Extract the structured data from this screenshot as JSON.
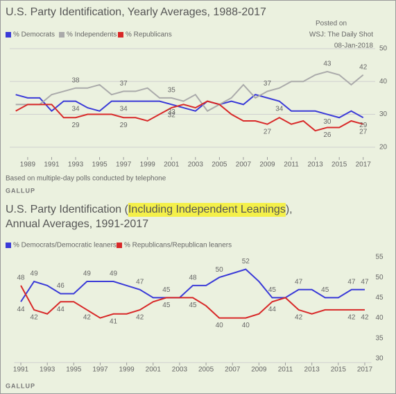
{
  "chart_data": [
    {
      "type": "line",
      "title": "U.S. Party Identification, Yearly Averages, 1988-2017",
      "posted": [
        "Posted on",
        "WSJ: The Daily Shot",
        "08-Jan-2018"
      ],
      "x": [
        1988,
        1989,
        1990,
        1991,
        1992,
        1993,
        1994,
        1995,
        1996,
        1997,
        1998,
        1999,
        2000,
        2001,
        2002,
        2003,
        2004,
        2005,
        2006,
        2007,
        2008,
        2009,
        2010,
        2011,
        2012,
        2013,
        2014,
        2015,
        2016,
        2017
      ],
      "series": [
        {
          "name": "% Democrats",
          "color": "#3a3ad8",
          "values": [
            36,
            35,
            35,
            31,
            34,
            34,
            32,
            31,
            34,
            34,
            34,
            34,
            34,
            33,
            32,
            31,
            34,
            33,
            34,
            33,
            36,
            35,
            34,
            31,
            31,
            31,
            30,
            29,
            31,
            29
          ],
          "value_labels": [
            null,
            null,
            null,
            null,
            null,
            "34",
            null,
            null,
            null,
            "34",
            null,
            null,
            null,
            "33",
            null,
            null,
            null,
            null,
            null,
            null,
            null,
            null,
            "34",
            null,
            null,
            null,
            "30",
            null,
            null,
            "29"
          ]
        },
        {
          "name": "% Independents",
          "color": "#aaaaaa",
          "values": [
            33,
            33,
            33,
            36,
            37,
            38,
            38,
            39,
            36,
            37,
            37,
            38,
            35,
            35,
            34,
            36,
            31,
            33,
            35,
            39,
            35,
            37,
            38,
            40,
            40,
            42,
            43,
            42,
            39,
            42
          ],
          "value_labels": [
            null,
            null,
            null,
            null,
            null,
            "38",
            null,
            null,
            null,
            "37",
            null,
            null,
            null,
            "35",
            null,
            null,
            null,
            null,
            null,
            null,
            null,
            "37",
            null,
            null,
            null,
            null,
            "43",
            null,
            null,
            "42"
          ]
        },
        {
          "name": "% Republicans",
          "color": "#d82828",
          "values": [
            31,
            33,
            33,
            33,
            29,
            29,
            30,
            30,
            30,
            29,
            29,
            28,
            30,
            32,
            33,
            32,
            34,
            33,
            30,
            28,
            28,
            27,
            29,
            27,
            28,
            25,
            26,
            26,
            28,
            27
          ],
          "value_labels": [
            null,
            null,
            null,
            null,
            null,
            "29",
            null,
            null,
            null,
            "29",
            null,
            null,
            null,
            "32",
            null,
            null,
            null,
            null,
            null,
            null,
            null,
            "27",
            null,
            null,
            null,
            null,
            "26",
            null,
            null,
            "27"
          ]
        }
      ],
      "xlim": [
        1987.5,
        2018
      ],
      "xticks": [
        1989,
        1991,
        1993,
        1995,
        1997,
        1999,
        2001,
        2003,
        2005,
        2007,
        2009,
        2011,
        2013,
        2015,
        2017
      ],
      "ylim": [
        17,
        52
      ],
      "yticks": [
        20,
        30,
        40,
        50
      ],
      "grid": true,
      "note": "Based on multiple-day polls conducted by telephone",
      "footer": "GALLUP"
    },
    {
      "type": "line",
      "title": {
        "before": "U.S. Party Identification (",
        "highlight": "Including Independent Leanings",
        "after": "),",
        "line2": "Annual Averages, 1991-2017"
      },
      "x": [
        1991,
        1992,
        1993,
        1994,
        1995,
        1996,
        1997,
        1998,
        1999,
        2000,
        2001,
        2002,
        2003,
        2004,
        2005,
        2006,
        2007,
        2008,
        2009,
        2010,
        2011,
        2012,
        2013,
        2014,
        2015,
        2016,
        2017
      ],
      "series": [
        {
          "name": "% Democrats/Democratic leaners",
          "color": "#3a3ad8",
          "values": [
            44,
            49,
            48,
            46,
            46,
            49,
            49,
            49,
            48,
            47,
            45,
            45,
            45,
            48,
            48,
            50,
            51,
            52,
            49,
            45,
            45,
            47,
            47,
            45,
            45,
            47,
            47
          ],
          "value_labels": [
            "44",
            "49",
            null,
            "46",
            null,
            "49",
            null,
            "49",
            null,
            "47",
            null,
            "45",
            null,
            "48",
            null,
            "50",
            null,
            "52",
            null,
            "45",
            null,
            "47",
            null,
            "45",
            null,
            "47",
            "47"
          ]
        },
        {
          "name": "% Republicans/Republican leaners",
          "color": "#d82828",
          "values": [
            48,
            42,
            41,
            44,
            44,
            42,
            40,
            41,
            41,
            42,
            44,
            45,
            45,
            45,
            43,
            40,
            40,
            40,
            41,
            44,
            45,
            42,
            41,
            42,
            42,
            42,
            42
          ],
          "value_labels": [
            "48",
            "42",
            null,
            "44",
            null,
            "42",
            null,
            "41",
            null,
            "42",
            null,
            "45",
            null,
            "45",
            null,
            "40",
            null,
            "40",
            null,
            "44",
            null,
            "42",
            null,
            null,
            null,
            "42",
            "42"
          ]
        }
      ],
      "xlim": [
        1990.5,
        2017.5
      ],
      "xticks": [
        1991,
        1993,
        1995,
        1997,
        1999,
        2001,
        2003,
        2005,
        2007,
        2009,
        2011,
        2013,
        2015,
        2017
      ],
      "ylim": [
        29,
        56
      ],
      "yticks": [
        30,
        35,
        40,
        45,
        50,
        55
      ],
      "grid": false,
      "footer": "GALLUP"
    }
  ]
}
